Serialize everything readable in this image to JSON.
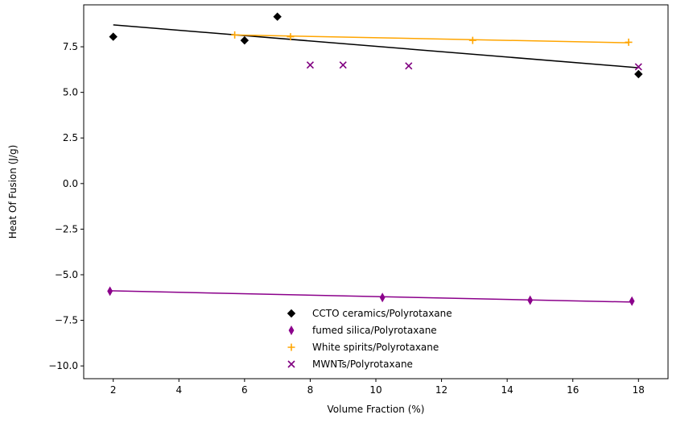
{
  "chart_data": {
    "type": "scatter",
    "title": "",
    "xlabel": "Volume Fraction (%)",
    "ylabel": "Heat Of Fusion (J/g)",
    "xlim": [
      1.1,
      18.9
    ],
    "ylim": [
      -10.7,
      9.8
    ],
    "xticks": [
      2,
      4,
      6,
      8,
      10,
      12,
      14,
      16,
      18
    ],
    "yticks": [
      -10.0,
      -7.5,
      -5.0,
      -2.5,
      0.0,
      2.5,
      5.0,
      7.5
    ],
    "xtick_labels": [
      "2",
      "4",
      "6",
      "8",
      "10",
      "12",
      "14",
      "16",
      "18"
    ],
    "ytick_labels": [
      "−10.0",
      "−7.5",
      "−5.0",
      "−2.5",
      "0.0",
      "2.5",
      "5.0",
      "7.5"
    ],
    "grid": false,
    "legend_position": "lower center",
    "series": [
      {
        "name": "CCTO ceramics/Polyrotaxane",
        "marker": "diamond",
        "color": "#000000",
        "x": [
          2,
          6,
          7,
          18
        ],
        "y": [
          8.05,
          7.85,
          9.15,
          6.0
        ],
        "fit": {
          "x": [
            2,
            18
          ],
          "y": [
            8.7,
            6.35
          ]
        }
      },
      {
        "name": "fumed silica/Polyrotaxane",
        "marker": "thin_diamond",
        "color": "#8b008b",
        "x": [
          1.9,
          10.2,
          14.7,
          17.8
        ],
        "y": [
          -5.9,
          -6.25,
          -6.4,
          -6.45
        ],
        "fit": {
          "x": [
            1.9,
            17.8
          ],
          "y": [
            -5.88,
            -6.5
          ]
        }
      },
      {
        "name": "White spirits/Polyrotaxane",
        "marker": "plus",
        "color": "#ffa500",
        "x": [
          5.7,
          7.4,
          12.95,
          17.7
        ],
        "y": [
          8.15,
          8.05,
          7.85,
          7.75
        ],
        "fit": {
          "x": [
            5.7,
            17.7
          ],
          "y": [
            8.15,
            7.72
          ]
        }
      },
      {
        "name": "MWNTs/Polyrotaxane",
        "marker": "x",
        "color": "#800080",
        "x": [
          8,
          9,
          11,
          18
        ],
        "y": [
          6.5,
          6.5,
          6.45,
          6.4
        ]
      }
    ]
  }
}
